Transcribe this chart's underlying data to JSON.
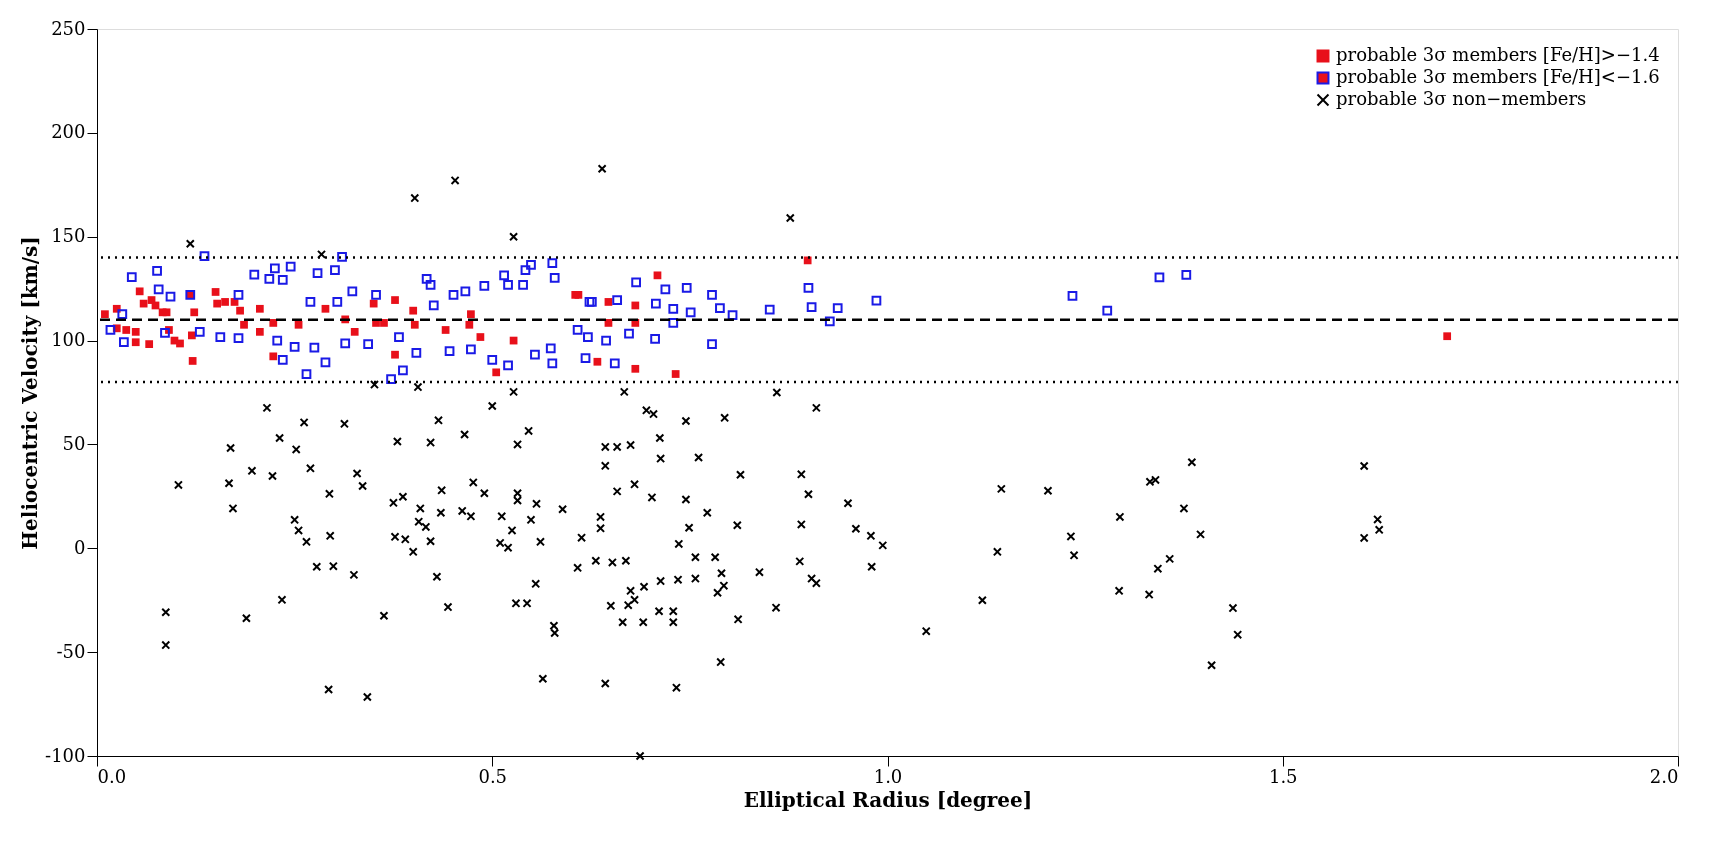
{
  "chart_data": {
    "type": "scatter",
    "xlabel": "Elliptical Radius [degree]",
    "ylabel": "Heliocentric Velocity [km/s]",
    "xlim": [
      0,
      2.0
    ],
    "ylim": [
      -100,
      250
    ],
    "xticks": [
      {
        "value": 0,
        "label": "0.0"
      },
      0.5,
      {
        "value": 1.0,
        "label": "1.0"
      },
      1.5,
      {
        "value": 2.0,
        "label": "2.0"
      }
    ],
    "yticks": [
      -100,
      -50,
      0,
      50,
      100,
      150,
      200,
      250
    ],
    "grid": false,
    "legend": "top right",
    "ref_lines": [
      {
        "axis": "y",
        "value": 140,
        "line_style": "dotted",
        "color": "#000000"
      },
      {
        "axis": "y",
        "value": 110,
        "line_style": "dashed",
        "color": "#000000"
      },
      {
        "axis": "y",
        "value": 80,
        "line_style": "dotted",
        "color": "#000000"
      }
    ],
    "series": [
      {
        "name": "probable 3σ members [Fe/H]>−1.4",
        "color": "#e8101a",
        "marker": "square",
        "x": [
          0.01,
          0.025,
          0.025,
          0.037,
          0.049,
          0.049,
          0.054,
          0.059,
          0.069,
          0.066,
          0.074,
          0.083,
          0.088,
          0.091,
          0.098,
          0.105,
          0.118,
          0.123,
          0.12,
          0.121,
          0.15,
          0.152,
          0.162,
          0.174,
          0.181,
          0.186,
          0.206,
          0.206,
          0.223,
          0.223,
          0.255,
          0.289,
          0.314,
          0.326,
          0.35,
          0.353,
          0.377,
          0.363,
          0.4,
          0.402,
          0.377,
          0.441,
          0.473,
          0.471,
          0.485,
          0.505,
          0.527,
          0.605,
          0.609,
          0.647,
          0.681,
          0.647,
          0.681,
          0.709,
          0.633,
          0.681,
          0.732,
          0.899,
          1.708
        ],
        "values": [
          112.7,
          115.3,
          105.9,
          105.1,
          104.2,
          99.2,
          123.7,
          117.8,
          119.5,
          98.3,
          116.9,
          113.6,
          113.6,
          105.1,
          100,
          98.6,
          122,
          113.6,
          102.5,
          90.2,
          123.4,
          117.8,
          118.6,
          118.6,
          114.4,
          107.6,
          115.3,
          104.2,
          108.5,
          92.4,
          107.6,
          115.3,
          110.2,
          104.2,
          117.8,
          108.5,
          119.5,
          108.5,
          114.4,
          107.6,
          93.2,
          105.1,
          112.7,
          107.6,
          101.7,
          84.7,
          100,
          122,
          122,
          118.6,
          116.9,
          108.5,
          108.5,
          131.4,
          89.8,
          86.4,
          83.9,
          138.6,
          102.1
        ]
      },
      {
        "name": "probable 3σ members [Fe/H]<−1.6",
        "color": "#1a1ae6",
        "marker": "square",
        "x": [
          0.017,
          0.032,
          0.034,
          0.044,
          0.076,
          0.078,
          0.093,
          0.086,
          0.118,
          0.13,
          0.136,
          0.156,
          0.179,
          0.179,
          0.199,
          0.218,
          0.225,
          0.235,
          0.245,
          0.279,
          0.301,
          0.31,
          0.228,
          0.235,
          0.25,
          0.265,
          0.275,
          0.289,
          0.27,
          0.304,
          0.323,
          0.314,
          0.343,
          0.353,
          0.372,
          0.387,
          0.382,
          0.404,
          0.417,
          0.422,
          0.426,
          0.446,
          0.451,
          0.466,
          0.473,
          0.49,
          0.5,
          0.52,
          0.515,
          0.52,
          0.542,
          0.549,
          0.539,
          0.554,
          0.576,
          0.579,
          0.574,
          0.576,
          0.618,
          0.623,
          0.608,
          0.626,
          0.658,
          0.682,
          0.719,
          0.729,
          0.729,
          0.707,
          0.746,
          0.751,
          0.778,
          0.788,
          0.804,
          0.778,
          0.706,
          0.673,
          0.644,
          0.655,
          0.621,
          0.851,
          0.9,
          0.904,
          0.937,
          0.927,
          0.986,
          1.234,
          1.278,
          1.344,
          1.378
        ],
        "values": [
          105.1,
          112.7,
          99.2,
          130.5,
          133.6,
          124.6,
          121.2,
          103.7,
          122,
          104.2,
          140.7,
          101.7,
          101.2,
          122,
          131.7,
          129.7,
          134.7,
          129.2,
          135.6,
          132.5,
          133.9,
          140.3,
          100,
          90.7,
          97,
          83.9,
          96.6,
          89.5,
          118.6,
          118.6,
          123.7,
          98.6,
          98.3,
          122,
          81.4,
          85.6,
          101.7,
          94.1,
          129.7,
          126.8,
          116.9,
          94.9,
          122,
          123.7,
          95.8,
          126.3,
          90.7,
          88.1,
          131.4,
          126.8,
          133.9,
          136.4,
          126.8,
          93.2,
          137.3,
          130.2,
          96.3,
          89,
          91.5,
          118.6,
          105.1,
          118.6,
          119.5,
          128,
          124.6,
          115.3,
          108.5,
          117.8,
          125.4,
          113.6,
          122,
          115.6,
          112.2,
          98.3,
          100.8,
          103.4,
          100,
          89,
          101.7,
          114.9,
          125.4,
          116.1,
          115.6,
          109.3,
          119.2,
          121.5,
          114.4,
          130.4,
          131.6
        ]
      },
      {
        "name": "probable 3σ non−members",
        "color": "#000000",
        "marker": "cross",
        "x": [
          0.103,
          0.087,
          0.087,
          0.167,
          0.169,
          0.172,
          0.189,
          0.196,
          0.215,
          0.222,
          0.231,
          0.234,
          0.252,
          0.25,
          0.255,
          0.262,
          0.265,
          0.27,
          0.278,
          0.294,
          0.295,
          0.293,
          0.299,
          0.313,
          0.325,
          0.329,
          0.336,
          0.342,
          0.351,
          0.363,
          0.375,
          0.38,
          0.387,
          0.377,
          0.39,
          0.4,
          0.406,
          0.409,
          0.407,
          0.416,
          0.422,
          0.422,
          0.43,
          0.432,
          0.436,
          0.435,
          0.444,
          0.465,
          0.462,
          0.476,
          0.473,
          0.49,
          0.5,
          0.512,
          0.51,
          0.52,
          0.525,
          0.527,
          0.532,
          0.532,
          0.532,
          0.53,
          0.544,
          0.546,
          0.549,
          0.556,
          0.561,
          0.555,
          0.578,
          0.579,
          0.564,
          0.589,
          0.613,
          0.608,
          0.667,
          0.643,
          0.658,
          0.675,
          0.643,
          0.637,
          0.637,
          0.712,
          0.713,
          0.695,
          0.704,
          0.745,
          0.794,
          0.761,
          0.814,
          0.658,
          0.68,
          0.702,
          0.745,
          0.772,
          0.749,
          0.736,
          0.81,
          0.891,
          0.9,
          0.891,
          0.86,
          0.91,
          0.95,
          0.96,
          0.979,
          0.994,
          0.98,
          0.631,
          0.652,
          0.669,
          0.692,
          0.675,
          0.68,
          0.65,
          0.672,
          0.665,
          0.691,
          0.711,
          0.729,
          0.729,
          0.713,
          0.735,
          0.757,
          0.757,
          0.782,
          0.79,
          0.793,
          0.785,
          0.838,
          0.811,
          0.859,
          0.889,
          0.904,
          0.91,
          0.789,
          0.643,
          0.733,
          1.049,
          1.12,
          1.139,
          1.144,
          1.203,
          1.232,
          1.236,
          1.294,
          1.293,
          1.331,
          1.332,
          1.339,
          1.342,
          1.357,
          1.385,
          1.375,
          1.396,
          1.437,
          1.443,
          1.41,
          1.603,
          1.603,
          1.62,
          1.622,
          0.118,
          0.284,
          0.402,
          0.453,
          0.527,
          0.639,
          0.877,
          0.687
        ],
        "values": [
          30.5,
          -30.8,
          -46.6,
          31.3,
          48.3,
          19.2,
          -33.7,
          37.3,
          67.6,
          34.8,
          53.1,
          -24.8,
          47.6,
          13.7,
          8.6,
          60.6,
          3.1,
          38.5,
          -8.9,
          26.2,
          6,
          -68,
          -8.6,
          59.9,
          -12.8,
          36,
          30,
          -71.6,
          78.8,
          -32.5,
          21.9,
          51.4,
          24.8,
          5.5,
          4.3,
          -1.7,
          77.6,
          19.2,
          12.8,
          10.3,
          50.9,
          3.4,
          -13.7,
          61.6,
          27.9,
          17.1,
          -28.3,
          54.8,
          18,
          31.7,
          15.4,
          26.5,
          68.5,
          15.4,
          2.6,
          0.3,
          8.6,
          75.3,
          50,
          26.5,
          23,
          -26.5,
          -26.5,
          56.5,
          13.7,
          21.4,
          3.1,
          -17.1,
          -37.3,
          -40.8,
          -62.8,
          18.8,
          5.1,
          -9.4,
          75.3,
          48.8,
          48.8,
          49.7,
          39.7,
          15.1,
          9.6,
          53.1,
          43.2,
          66.4,
          64.6,
          61.3,
          62.8,
          43.7,
          35.4,
          27.4,
          30.8,
          24.5,
          23.5,
          17.1,
          9.9,
          2.1,
          11.1,
          35.6,
          26,
          11.5,
          75,
          67.6,
          21.7,
          9.4,
          6,
          1.4,
          -8.9,
          -6,
          -6.8,
          -6,
          -18.5,
          -20.5,
          -24.8,
          -27.7,
          -27.4,
          -35.6,
          -35.6,
          -30.3,
          -30.3,
          -35.6,
          -15.8,
          -15.1,
          -14.6,
          -4.3,
          -4.3,
          -12,
          -18,
          -21.4,
          -11.5,
          -34.2,
          -28.6,
          -6.3,
          -14.6,
          -16.8,
          -54.8,
          -65.1,
          -67.1,
          -39.9,
          -25,
          -1.7,
          28.6,
          27.7,
          5.7,
          -3.4,
          15.1,
          -20.5,
          -22.3,
          32,
          32.9,
          -9.8,
          -5.1,
          41.4,
          19.2,
          6.7,
          -28.8,
          -41.6,
          -56.3,
          39.6,
          5,
          13.9,
          8.9,
          146.6,
          141.5,
          168.6,
          177.1,
          150,
          182.7,
          159,
          -100
        ]
      }
    ]
  }
}
